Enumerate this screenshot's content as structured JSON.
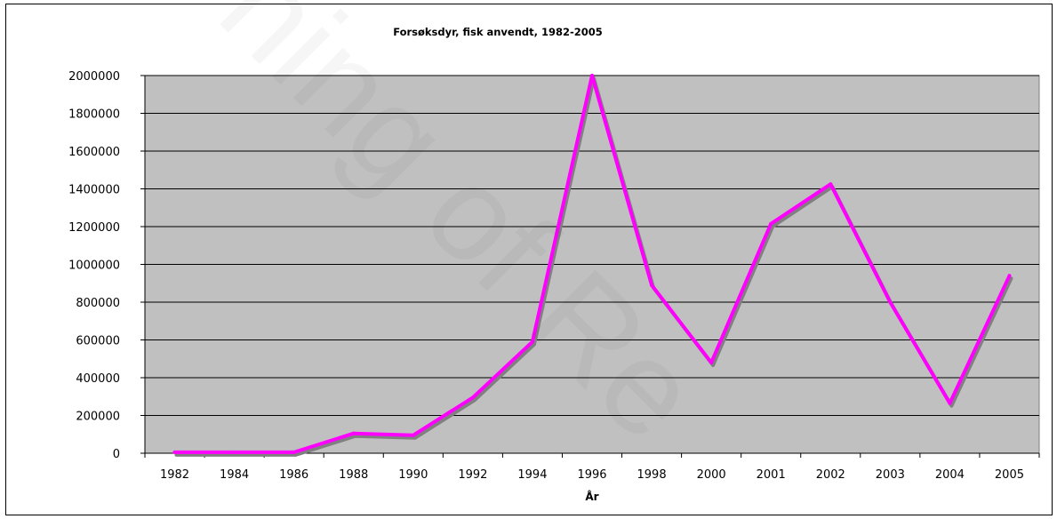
{
  "chart_data": {
    "type": "line",
    "title": "Forsøksdyr, fisk anvendt, 1982-2005",
    "xlabel": "År",
    "ylabel": "",
    "categories": [
      "1982",
      "1984",
      "1986",
      "1988",
      "1990",
      "1992",
      "1994",
      "1996",
      "1998",
      "2000",
      "2001",
      "2002",
      "2003",
      "2004",
      "2005"
    ],
    "series": [
      {
        "values": [
          5000,
          5000,
          5000,
          105000,
          95000,
          295000,
          590000,
          2000000,
          890000,
          480000,
          1215000,
          1425000,
          800000,
          265000,
          940000
        ]
      }
    ],
    "ylim": [
      0,
      2000000
    ],
    "yticks": [
      "0",
      "200000",
      "400000",
      "600000",
      "800000",
      "1000000",
      "1200000",
      "1400000",
      "1600000",
      "1800000",
      "2000000"
    ],
    "grid": true,
    "legend": "none",
    "plot_background": "#c0c0c0",
    "line_color": "#ff00ff",
    "shadow_color": "#808080"
  }
}
